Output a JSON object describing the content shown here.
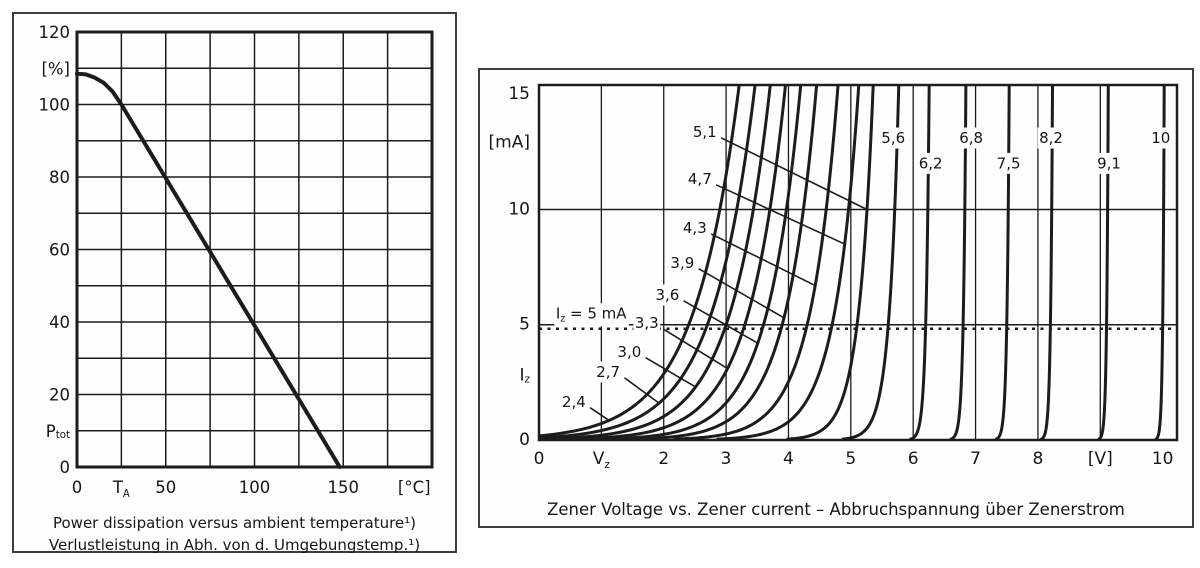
{
  "page": {
    "background": "#ffffff",
    "line_color": "#1c1c1c",
    "panel_border_color": "#3d3d3d"
  },
  "chart_data": [
    {
      "id": "power-derating",
      "type": "line",
      "title": "Power dissipation versus ambient temperature",
      "captions": [
        "Power dissipation versus ambient temperature¹)",
        "Verlustleistung in Abh. von d. Umgebungstemp.¹)"
      ],
      "xlabel": "[°C]",
      "ylabel": "[%]",
      "xlim": [
        0,
        200
      ],
      "ylim": [
        0,
        120
      ],
      "grid_step": {
        "x": 25,
        "y": 10
      },
      "grid": true,
      "y_ticks": [
        {
          "v": 120,
          "t": "120"
        },
        {
          "v": 110,
          "t": "[%]"
        },
        {
          "v": 100,
          "t": "100"
        },
        {
          "v": 80,
          "t": "80"
        },
        {
          "v": 60,
          "t": "60"
        },
        {
          "v": 40,
          "t": "40"
        },
        {
          "v": 20,
          "t": "20"
        },
        {
          "v": 10,
          "t": "P",
          "sub": "tot"
        },
        {
          "v": 0,
          "t": "0"
        }
      ],
      "x_ticks": [
        {
          "v": 0,
          "t": "0"
        },
        {
          "v": 25,
          "t": "T",
          "sub": "A"
        },
        {
          "v": 50,
          "t": "50"
        },
        {
          "v": 100,
          "t": "100"
        },
        {
          "v": 150,
          "t": "150"
        },
        {
          "v": 190,
          "t": "[°C]"
        }
      ],
      "curve_points": [
        [
          0,
          108.5
        ],
        [
          5,
          108.3
        ],
        [
          10,
          107.4
        ],
        [
          15,
          106.0
        ],
        [
          20,
          103.6
        ],
        [
          25,
          100.0
        ],
        [
          148,
          0
        ]
      ]
    },
    {
      "id": "zener-characteristics",
      "type": "line",
      "title": "Zener Voltage vs. Zener current – Abbruchspannung über Zenerstrom",
      "caption": "Zener Voltage vs. Zener current – Abbruchspannung über Zenerstrom",
      "xlabel": "[V]",
      "ylabel": "[mA]",
      "xlim": [
        0,
        10.23
      ],
      "ylim": [
        0,
        15.4
      ],
      "x_gridlines": [
        1,
        2,
        3,
        4,
        5,
        6,
        7,
        8,
        9
      ],
      "y_gridlines": [
        5,
        10
      ],
      "grid": true,
      "test_current_line": {
        "i": 5,
        "label_main": "I",
        "label_sub": "z",
        "label_rest": " = 5 mA",
        "label_x": 0.27,
        "style": "dotted"
      },
      "y_ticks": [
        {
          "v": 15,
          "t": "15"
        },
        {
          "v": 12.9,
          "t": "[mA]"
        },
        {
          "v": 10,
          "t": "10"
        },
        {
          "v": 5,
          "t": "5"
        },
        {
          "v": 2.8,
          "t": "I",
          "sub": "z"
        },
        {
          "v": 0,
          "t": "0"
        }
      ],
      "x_ticks": [
        {
          "v": 0,
          "t": "0"
        },
        {
          "v": 1,
          "t": "V",
          "sub": "z"
        },
        {
          "v": 2,
          "t": "2"
        },
        {
          "v": 3,
          "t": "3"
        },
        {
          "v": 4,
          "t": "4"
        },
        {
          "v": 5,
          "t": "5"
        },
        {
          "v": 6,
          "t": "6"
        },
        {
          "v": 7,
          "t": "7"
        },
        {
          "v": 8,
          "t": "8"
        },
        {
          "v": 9,
          "t": "[V]"
        },
        {
          "v": 10,
          "t": "10"
        }
      ],
      "series_model": "V(I) = vz + r*ln(I/5); vz is Zener voltage at Iz = 5 mA",
      "series": [
        {
          "name": "2,4",
          "vz": 2.4,
          "r": 0.72,
          "label": {
            "x": 0.75,
            "y": 1.65
          },
          "leader_to_i": 0.85
        },
        {
          "name": "2,7",
          "vz": 2.7,
          "r": 0.68,
          "label": {
            "x": 1.3,
            "y": 2.95
          },
          "leader_to_i": 1.6
        },
        {
          "name": "3,0",
          "vz": 3.0,
          "r": 0.63,
          "label": {
            "x": 1.64,
            "y": 3.82
          },
          "leader_to_i": 2.3
        },
        {
          "name": "3,3",
          "vz": 3.3,
          "r": 0.58,
          "label": {
            "x": 1.92,
            "y": 5.07
          },
          "leader_to_i": 3.1
        },
        {
          "name": "3,6",
          "vz": 3.6,
          "r": 0.53,
          "label": {
            "x": 2.25,
            "y": 6.29
          },
          "leader_to_i": 4.2
        },
        {
          "name": "3,9",
          "vz": 3.9,
          "r": 0.49,
          "label": {
            "x": 2.49,
            "y": 7.68
          },
          "leader_to_i": 5.3
        },
        {
          "name": "4,3",
          "vz": 4.3,
          "r": 0.44,
          "label": {
            "x": 2.69,
            "y": 9.19
          },
          "leader_to_i": 6.7
        },
        {
          "name": "4,7",
          "vz": 4.7,
          "r": 0.38,
          "label": {
            "x": 2.77,
            "y": 11.32
          },
          "leader_to_i": 8.5
        },
        {
          "name": "5,1",
          "vz": 5.1,
          "r": 0.23,
          "label": {
            "x": 2.85,
            "y": 13.36
          },
          "leader_to_i": 10.0
        },
        {
          "name": "5,6",
          "vz": 5.6,
          "r": 0.15,
          "label": {
            "x": 5.68,
            "y": 13.1
          }
        },
        {
          "name": "6,2",
          "vz": 6.2,
          "r": 0.05,
          "label": {
            "x": 6.28,
            "y": 12.0
          }
        },
        {
          "name": "6,8",
          "vz": 6.8,
          "r": 0.04,
          "label": {
            "x": 6.93,
            "y": 13.1
          }
        },
        {
          "name": "7,5",
          "vz": 7.5,
          "r": 0.035,
          "label": {
            "x": 7.53,
            "y": 12.0
          }
        },
        {
          "name": "8,2",
          "vz": 8.2,
          "r": 0.03,
          "label": {
            "x": 8.21,
            "y": 13.1
          }
        },
        {
          "name": "9,1",
          "vz": 9.1,
          "r": 0.025,
          "label": {
            "x": 9.14,
            "y": 12.0
          }
        },
        {
          "name": "10",
          "vz": 10.0,
          "r": 0.022,
          "label": {
            "x": 9.97,
            "y": 13.1
          }
        }
      ]
    }
  ]
}
